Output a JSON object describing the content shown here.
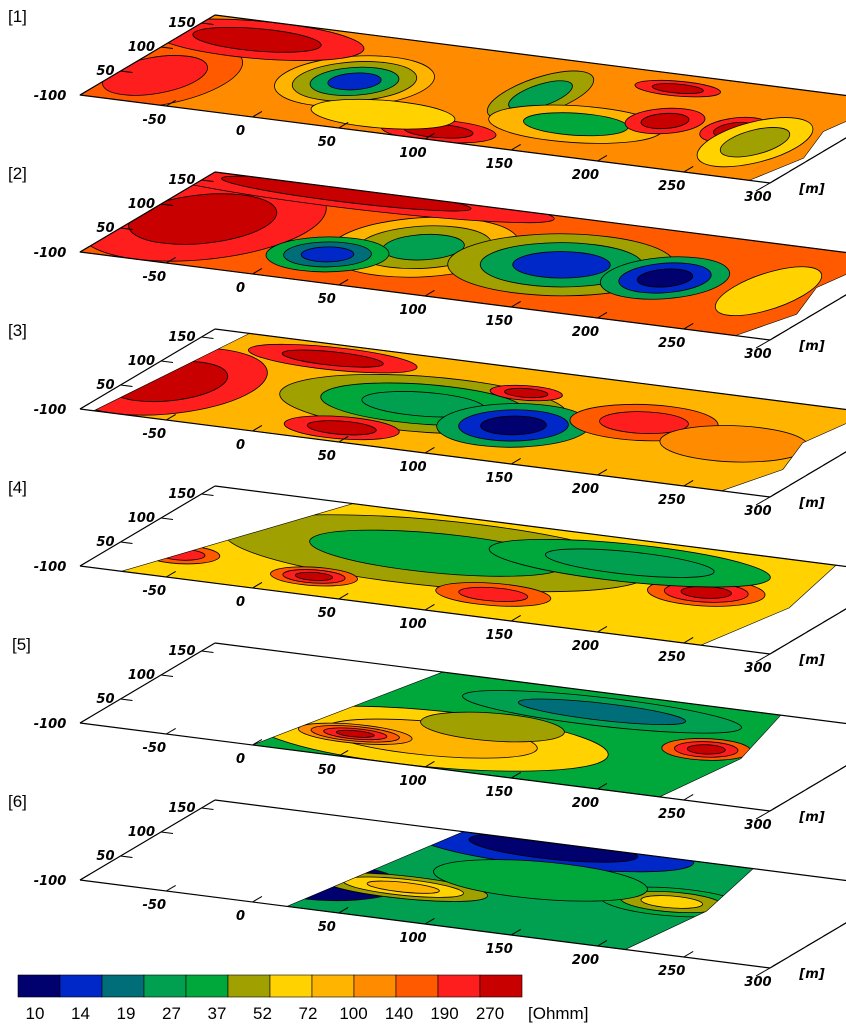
{
  "panels": [
    "[1]",
    "[2]",
    "[3]",
    "[4]",
    "[5]",
    "[6]"
  ],
  "x_ticks": [
    "-100",
    "-50",
    "0",
    "50",
    "100",
    "150",
    "200",
    "250",
    "300"
  ],
  "y_ticks": [
    "50",
    "100",
    "150"
  ],
  "unit": "[m]",
  "colorbar": {
    "colors": [
      "#00006e",
      "#0028c8",
      "#006e78",
      "#00a050",
      "#00a83c",
      "#a0a000",
      "#ffd200",
      "#ffb400",
      "#ff8c00",
      "#ff5a00",
      "#ff1e1e",
      "#c80000"
    ],
    "labels": [
      "10",
      "14",
      "19",
      "27",
      "37",
      "52",
      "72",
      "100",
      "140",
      "190",
      "270"
    ],
    "unit": "[Ohmm]"
  }
}
